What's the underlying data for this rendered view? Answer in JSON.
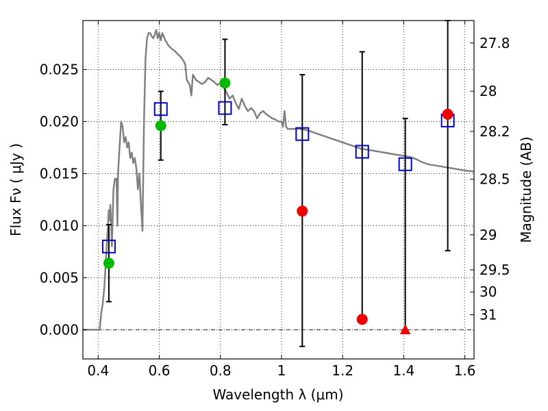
{
  "chart_data": {
    "type": "scatter",
    "title": "",
    "xlabel": "Wavelength  λ (μm)",
    "ylabel": "Flux  Fν  ( μJy )",
    "y2label": "Magnitude (AB)",
    "xlim": [
      0.35,
      1.63
    ],
    "ylim": [
      -0.0028,
      0.0297
    ],
    "grid": true,
    "x_ticks": [
      {
        "value": 0.4,
        "label": "0.4"
      },
      {
        "value": 0.6,
        "label": "0.6"
      },
      {
        "value": 0.8,
        "label": "0.8"
      },
      {
        "value": 1.0,
        "label": "1"
      },
      {
        "value": 1.2,
        "label": "1.2"
      },
      {
        "value": 1.4,
        "label": "1.4"
      },
      {
        "value": 1.6,
        "label": "1.6"
      }
    ],
    "y_ticks": [
      {
        "value": 0.0,
        "label": "0.000"
      },
      {
        "value": 0.005,
        "label": "0.005"
      },
      {
        "value": 0.01,
        "label": "0.010"
      },
      {
        "value": 0.015,
        "label": "0.015"
      },
      {
        "value": 0.02,
        "label": "0.020"
      },
      {
        "value": 0.025,
        "label": "0.025"
      }
    ],
    "y2_ticks": [
      {
        "value": 27.8,
        "label": "27.8"
      },
      {
        "value": 28.0,
        "label": "28"
      },
      {
        "value": 28.2,
        "label": "28.2"
      },
      {
        "value": 28.5,
        "label": "28.5"
      },
      {
        "value": 29.0,
        "label": "29"
      },
      {
        "value": 29.5,
        "label": "29.5"
      },
      {
        "value": 30.0,
        "label": "30"
      },
      {
        "value": 31.0,
        "label": "31"
      }
    ],
    "colors": {
      "template": "#808080",
      "model_box": "#0000cc",
      "obs_green": "#00bb00",
      "obs_red": "#ee0000",
      "errorbar": "#000000"
    },
    "template_spectrum": [
      [
        0.35,
        0.0
      ],
      [
        0.405,
        0.0
      ],
      [
        0.41,
        0.0016
      ],
      [
        0.415,
        0.0025
      ],
      [
        0.42,
        0.004
      ],
      [
        0.425,
        0.0065
      ],
      [
        0.43,
        0.009
      ],
      [
        0.435,
        0.0115
      ],
      [
        0.438,
        0.0105
      ],
      [
        0.44,
        0.012
      ],
      [
        0.445,
        0.008
      ],
      [
        0.45,
        0.0135
      ],
      [
        0.455,
        0.0145
      ],
      [
        0.46,
        0.0145
      ],
      [
        0.463,
        0.01
      ],
      [
        0.465,
        0.015
      ],
      [
        0.47,
        0.0175
      ],
      [
        0.475,
        0.02
      ],
      [
        0.48,
        0.0195
      ],
      [
        0.485,
        0.018
      ],
      [
        0.49,
        0.0185
      ],
      [
        0.495,
        0.0175
      ],
      [
        0.5,
        0.018
      ],
      [
        0.505,
        0.0165
      ],
      [
        0.51,
        0.017
      ],
      [
        0.515,
        0.016
      ],
      [
        0.52,
        0.0165
      ],
      [
        0.525,
        0.0155
      ],
      [
        0.53,
        0.0135
      ],
      [
        0.535,
        0.015
      ],
      [
        0.54,
        0.012
      ],
      [
        0.545,
        0.0095
      ],
      [
        0.55,
        0.02
      ],
      [
        0.555,
        0.026
      ],
      [
        0.56,
        0.028
      ],
      [
        0.565,
        0.0285
      ],
      [
        0.57,
        0.0285
      ],
      [
        0.575,
        0.0282
      ],
      [
        0.58,
        0.028
      ],
      [
        0.585,
        0.0283
      ],
      [
        0.59,
        0.0288
      ],
      [
        0.595,
        0.028
      ],
      [
        0.6,
        0.0285
      ],
      [
        0.605,
        0.0278
      ],
      [
        0.61,
        0.0285
      ],
      [
        0.62,
        0.0278
      ],
      [
        0.63,
        0.0273
      ],
      [
        0.64,
        0.027
      ],
      [
        0.65,
        0.0268
      ],
      [
        0.66,
        0.0265
      ],
      [
        0.67,
        0.0262
      ],
      [
        0.68,
        0.0258
      ],
      [
        0.685,
        0.0255
      ],
      [
        0.69,
        0.024
      ],
      [
        0.7,
        0.0235
      ],
      [
        0.705,
        0.0225
      ],
      [
        0.71,
        0.0245
      ],
      [
        0.72,
        0.024
      ],
      [
        0.73,
        0.0238
      ],
      [
        0.74,
        0.0236
      ],
      [
        0.75,
        0.0238
      ],
      [
        0.76,
        0.0242
      ],
      [
        0.77,
        0.024
      ],
      [
        0.78,
        0.0238
      ],
      [
        0.79,
        0.0235
      ],
      [
        0.8,
        0.0237
      ],
      [
        0.81,
        0.0233
      ],
      [
        0.82,
        0.0228
      ],
      [
        0.83,
        0.0222
      ],
      [
        0.84,
        0.0225
      ],
      [
        0.85,
        0.0218
      ],
      [
        0.86,
        0.0212
      ],
      [
        0.87,
        0.0222
      ],
      [
        0.88,
        0.0215
      ],
      [
        0.89,
        0.021
      ],
      [
        0.9,
        0.0213
      ],
      [
        0.91,
        0.021
      ],
      [
        0.92,
        0.0203
      ],
      [
        0.93,
        0.0208
      ],
      [
        0.94,
        0.021
      ],
      [
        0.95,
        0.0207
      ],
      [
        0.96,
        0.0205
      ],
      [
        0.97,
        0.0203
      ],
      [
        0.98,
        0.0202
      ],
      [
        0.99,
        0.02
      ],
      [
        1.0,
        0.02
      ],
      [
        1.005,
        0.0195
      ],
      [
        1.01,
        0.021
      ],
      [
        1.015,
        0.0195
      ],
      [
        1.02,
        0.0193
      ],
      [
        1.04,
        0.0193
      ],
      [
        1.06,
        0.0193
      ],
      [
        1.08,
        0.0192
      ],
      [
        1.1,
        0.019
      ],
      [
        1.12,
        0.0188
      ],
      [
        1.14,
        0.0186
      ],
      [
        1.16,
        0.0184
      ],
      [
        1.18,
        0.0182
      ],
      [
        1.2,
        0.018
      ],
      [
        1.22,
        0.0178
      ],
      [
        1.24,
        0.0176
      ],
      [
        1.26,
        0.0174
      ],
      [
        1.28,
        0.0173
      ],
      [
        1.3,
        0.0172
      ],
      [
        1.32,
        0.0171
      ],
      [
        1.34,
        0.017
      ],
      [
        1.36,
        0.0169
      ],
      [
        1.38,
        0.0168
      ],
      [
        1.4,
        0.0167
      ],
      [
        1.42,
        0.0166
      ],
      [
        1.44,
        0.0164
      ],
      [
        1.46,
        0.0161
      ],
      [
        1.48,
        0.0159
      ],
      [
        1.5,
        0.0158
      ],
      [
        1.52,
        0.0157
      ],
      [
        1.54,
        0.0156
      ],
      [
        1.56,
        0.0155
      ],
      [
        1.58,
        0.0154
      ],
      [
        1.6,
        0.0153
      ],
      [
        1.63,
        0.0152
      ]
    ],
    "model_points": [
      {
        "x": 0.435,
        "y": 0.008
      },
      {
        "x": 0.605,
        "y": 0.0212
      },
      {
        "x": 0.815,
        "y": 0.0213
      },
      {
        "x": 1.068,
        "y": 0.0188
      },
      {
        "x": 1.264,
        "y": 0.0171
      },
      {
        "x": 1.405,
        "y": 0.0159
      },
      {
        "x": 1.544,
        "y": 0.0201
      }
    ],
    "observed_points": [
      {
        "x": 0.435,
        "y": 0.0064,
        "err_low": 0.0027,
        "err_high": 0.0101,
        "marker": "circle",
        "color": "green"
      },
      {
        "x": 0.605,
        "y": 0.0196,
        "err_low": 0.0163,
        "err_high": 0.0229,
        "marker": "circle",
        "color": "green"
      },
      {
        "x": 0.815,
        "y": 0.0237,
        "err_low": 0.0197,
        "err_high": 0.0279,
        "marker": "circle",
        "color": "green"
      },
      {
        "x": 1.068,
        "y": 0.0114,
        "err_low": -0.0016,
        "err_high": 0.0245,
        "marker": "circle",
        "color": "red"
      },
      {
        "x": 1.264,
        "y": 0.001,
        "err_low": 0.001,
        "err_high": 0.0267,
        "marker": "circle",
        "color": "red"
      },
      {
        "x": 1.405,
        "y": 0.0,
        "err_low": 0.0,
        "err_high": 0.0203,
        "marker": "triangle",
        "color": "red"
      },
      {
        "x": 1.544,
        "y": 0.0207,
        "err_low": 0.0076,
        "err_high": 0.0297,
        "marker": "circle",
        "color": "red"
      }
    ]
  }
}
